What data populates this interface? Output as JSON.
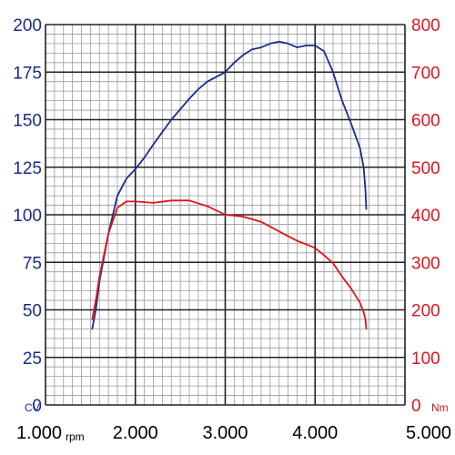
{
  "colors": {
    "power": "#1b2a8f",
    "torque": "#e0141c",
    "grid_major": "#222222",
    "grid_minor": "#9a9a9a",
    "axis_text": "#000000"
  },
  "chart_data": {
    "type": "line",
    "x_ticks": [
      {
        "value": 1000,
        "label": "1.000"
      },
      {
        "value": 2000,
        "label": "2.000"
      },
      {
        "value": 3000,
        "label": "3.000"
      },
      {
        "value": 4000,
        "label": "4.000"
      },
      {
        "value": 5000,
        "label": "5.000"
      }
    ],
    "x_unit": "rpm",
    "xlim": [
      1000,
      5000
    ],
    "y_left": {
      "unit": "CV",
      "ylim": [
        0,
        200
      ],
      "ticks": [
        "0",
        "25",
        "50",
        "75",
        "100",
        "125",
        "150",
        "175",
        "200"
      ]
    },
    "y_right": {
      "unit": "Nm",
      "ylim": [
        0,
        800
      ],
      "ticks": [
        "0",
        "100",
        "200",
        "300",
        "400",
        "500",
        "600",
        "700",
        "800"
      ]
    },
    "grid": true,
    "series": [
      {
        "axis": "left",
        "color": "#1b2a8f",
        "x": [
          1520,
          1560,
          1600,
          1700,
          1800,
          1900,
          2000,
          2100,
          2200,
          2400,
          2600,
          2700,
          2800,
          3000,
          3100,
          3200,
          3300,
          3400,
          3500,
          3600,
          3700,
          3800,
          3900,
          4000,
          4100,
          4200,
          4300,
          4400,
          4500,
          4540,
          4560,
          4570
        ],
        "values": [
          40,
          50,
          65,
          90,
          110,
          119,
          124,
          130,
          137,
          150,
          161,
          166,
          170,
          175,
          180,
          184,
          187,
          188,
          190,
          191,
          190,
          188,
          189,
          189,
          186,
          175,
          160,
          148,
          135,
          125,
          113,
          103
        ]
      },
      {
        "axis": "right",
        "color": "#e0141c",
        "x": [
          1520,
          1560,
          1600,
          1700,
          1800,
          1900,
          2000,
          2200,
          2400,
          2600,
          2800,
          3000,
          3100,
          3200,
          3400,
          3600,
          3800,
          3900,
          4000,
          4100,
          4200,
          4300,
          4400,
          4450,
          4500,
          4540,
          4560,
          4570
        ],
        "values": [
          180,
          220,
          270,
          360,
          415,
          428,
          428,
          425,
          430,
          430,
          418,
          400,
          398,
          396,
          385,
          365,
          345,
          338,
          330,
          315,
          298,
          270,
          245,
          230,
          215,
          195,
          180,
          160
        ]
      }
    ]
  }
}
